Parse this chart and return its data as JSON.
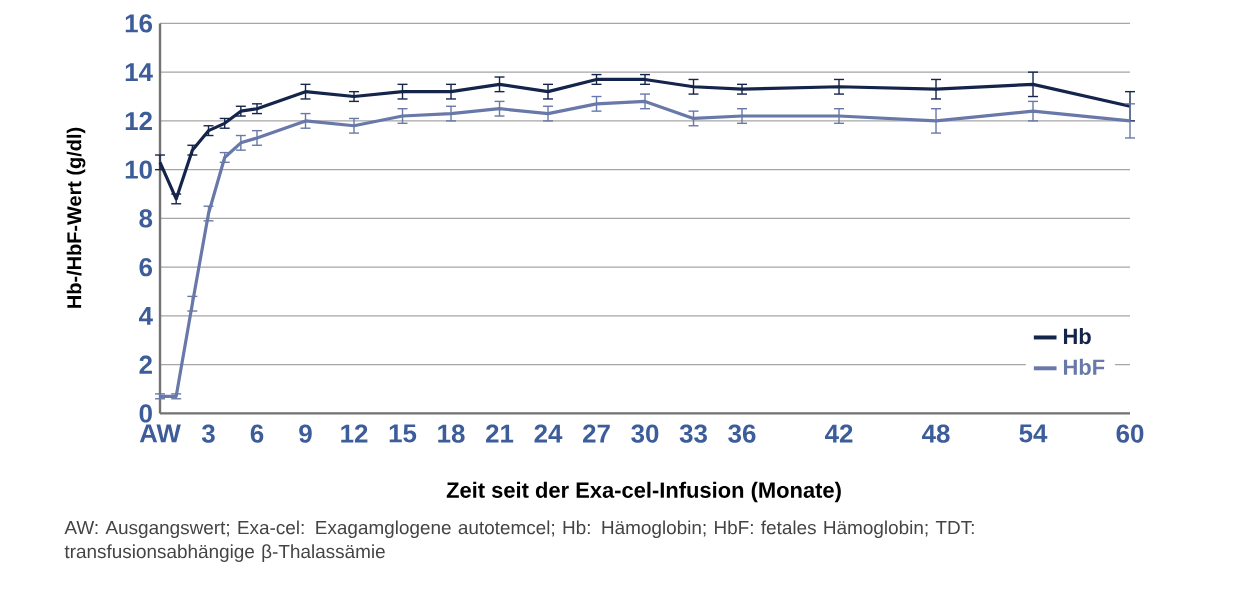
{
  "chart_data": {
    "type": "line",
    "xlabel": "Zeit seit der Exa-cel-Infusion (Monate)",
    "ylabel": "Hb-/HbF-Wert (g/dl)",
    "annotations": [
      "AW: Ausgangswert; Exa-cel: Exagamglogene autotemcel; Hb: Hämoglobin; HbF: fetales Hämoglobin; TDT: transfusionsabhängige β-Thalassämie"
    ],
    "x": [
      0,
      1,
      2,
      3,
      4,
      5,
      6,
      9,
      12,
      15,
      18,
      21,
      24,
      27,
      30,
      33,
      36,
      42,
      48,
      54,
      60
    ],
    "series": [
      {
        "name": "Hb",
        "color": "#14244a",
        "values": [
          10.3,
          8.8,
          10.8,
          11.6,
          11.9,
          12.4,
          12.5,
          13.2,
          13.0,
          13.2,
          13.2,
          13.5,
          13.2,
          13.7,
          13.7,
          13.4,
          13.3,
          13.4,
          13.3,
          13.5,
          12.6
        ],
        "errors": [
          0.3,
          0.2,
          0.2,
          0.2,
          0.2,
          0.2,
          0.2,
          0.3,
          0.2,
          0.3,
          0.3,
          0.3,
          0.3,
          0.2,
          0.2,
          0.3,
          0.2,
          0.3,
          0.4,
          0.5,
          0.6
        ]
      },
      {
        "name": "HbF",
        "color": "#6878a8",
        "values": [
          0.7,
          0.7,
          4.5,
          8.2,
          10.5,
          11.1,
          11.3,
          12.0,
          11.8,
          12.2,
          12.3,
          12.5,
          12.3,
          12.7,
          12.8,
          12.1,
          12.2,
          12.2,
          12.0,
          12.4,
          12.0
        ],
        "errors": [
          0.1,
          0.1,
          0.3,
          0.3,
          0.2,
          0.3,
          0.3,
          0.3,
          0.3,
          0.3,
          0.3,
          0.3,
          0.3,
          0.3,
          0.3,
          0.3,
          0.3,
          0.3,
          0.5,
          0.4,
          0.7
        ]
      }
    ],
    "xlim": [
      0,
      60
    ],
    "xticks": [
      {
        "value": 0,
        "label": "AW"
      },
      3,
      6,
      9,
      12,
      15,
      18,
      21,
      24,
      27,
      30,
      33,
      36,
      42,
      48,
      54,
      60
    ],
    "ylim": [
      0,
      16
    ],
    "yticks": [
      0,
      2,
      4,
      6,
      8,
      10,
      12,
      14,
      16
    ],
    "grid": "y",
    "legend": "bottom right",
    "line_style": "solid"
  }
}
